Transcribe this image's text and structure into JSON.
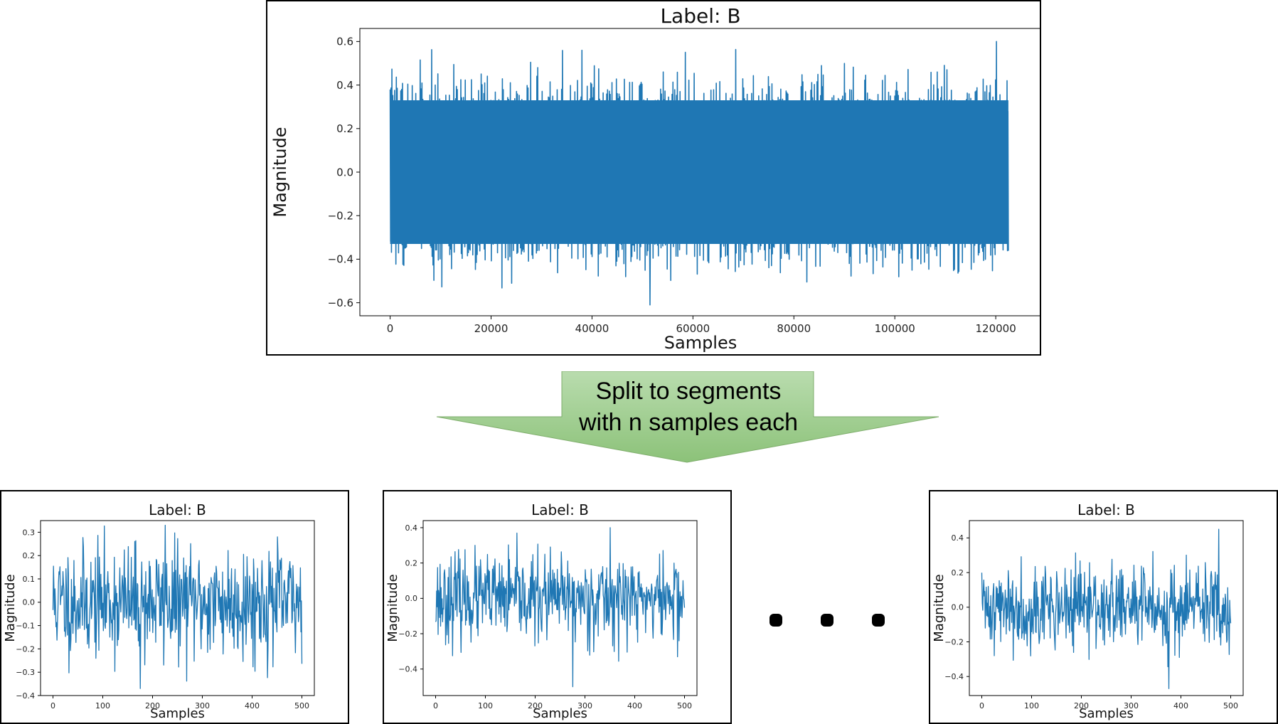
{
  "accent_color": "#1f77b4",
  "arrow": {
    "line1": "Split to segments",
    "line2": "with n samples each",
    "fill_top": "#b9dcae",
    "fill_bottom": "#8cc279"
  },
  "ellipsis_icon": "three-dots",
  "chart_data": [
    {
      "type": "line",
      "title": "Label: B",
      "xlabel": "Samples",
      "ylabel": "Magnitude",
      "xlim": [
        -6000,
        129000
      ],
      "ylim": [
        -0.66,
        0.66
      ],
      "xticks": [
        0,
        20000,
        40000,
        60000,
        80000,
        100000,
        120000
      ],
      "yticks": [
        -0.6,
        -0.4,
        -0.2,
        0.0,
        0.2,
        0.4,
        0.6
      ],
      "ytick_labels": [
        "−0.6",
        "−0.4",
        "−0.2",
        "0.0",
        "0.2",
        "0.4",
        "0.6"
      ],
      "series": [
        {
          "n_samples": 122500,
          "envelope_typical": [
            -0.33,
            0.33
          ],
          "min": -0.61,
          "max": 0.6
        }
      ]
    },
    {
      "type": "line",
      "title": "Label: B",
      "xlabel": "Samples",
      "ylabel": "Magnitude",
      "xlim": [
        -25,
        525
      ],
      "ylim": [
        -0.4,
        0.35
      ],
      "xticks": [
        0,
        100,
        200,
        300,
        400,
        500
      ],
      "yticks": [
        -0.4,
        -0.3,
        -0.2,
        -0.1,
        0.0,
        0.1,
        0.2,
        0.3
      ],
      "ytick_labels": [
        "−0.4",
        "−0.3",
        "−0.2",
        "−0.1",
        "0.0",
        "0.1",
        "0.2",
        "0.3"
      ],
      "series": [
        {
          "n_samples": 500,
          "min": -0.37,
          "max": 0.33
        }
      ]
    },
    {
      "type": "line",
      "title": "Label: B",
      "xlabel": "Samples",
      "ylabel": "Magnitude",
      "xlim": [
        -25,
        525
      ],
      "ylim": [
        -0.55,
        0.44
      ],
      "xticks": [
        0,
        100,
        200,
        300,
        400,
        500
      ],
      "yticks": [
        -0.4,
        -0.2,
        0.0,
        0.2,
        0.4
      ],
      "ytick_labels": [
        "−0.4",
        "−0.2",
        "0.0",
        "0.2",
        "0.4"
      ],
      "series": [
        {
          "n_samples": 500,
          "min": -0.5,
          "max": 0.4
        }
      ]
    },
    {
      "type": "line",
      "title": "Label: B",
      "xlabel": "Samples",
      "ylabel": "Magnitude",
      "xlim": [
        -25,
        525
      ],
      "ylim": [
        -0.51,
        0.5
      ],
      "xticks": [
        0,
        100,
        200,
        300,
        400,
        500
      ],
      "yticks": [
        -0.4,
        -0.2,
        0.0,
        0.2,
        0.4
      ],
      "ytick_labels": [
        "−0.4",
        "−0.2",
        "0.0",
        "0.2",
        "0.4"
      ],
      "series": [
        {
          "n_samples": 500,
          "min": -0.47,
          "max": 0.45
        }
      ]
    }
  ]
}
